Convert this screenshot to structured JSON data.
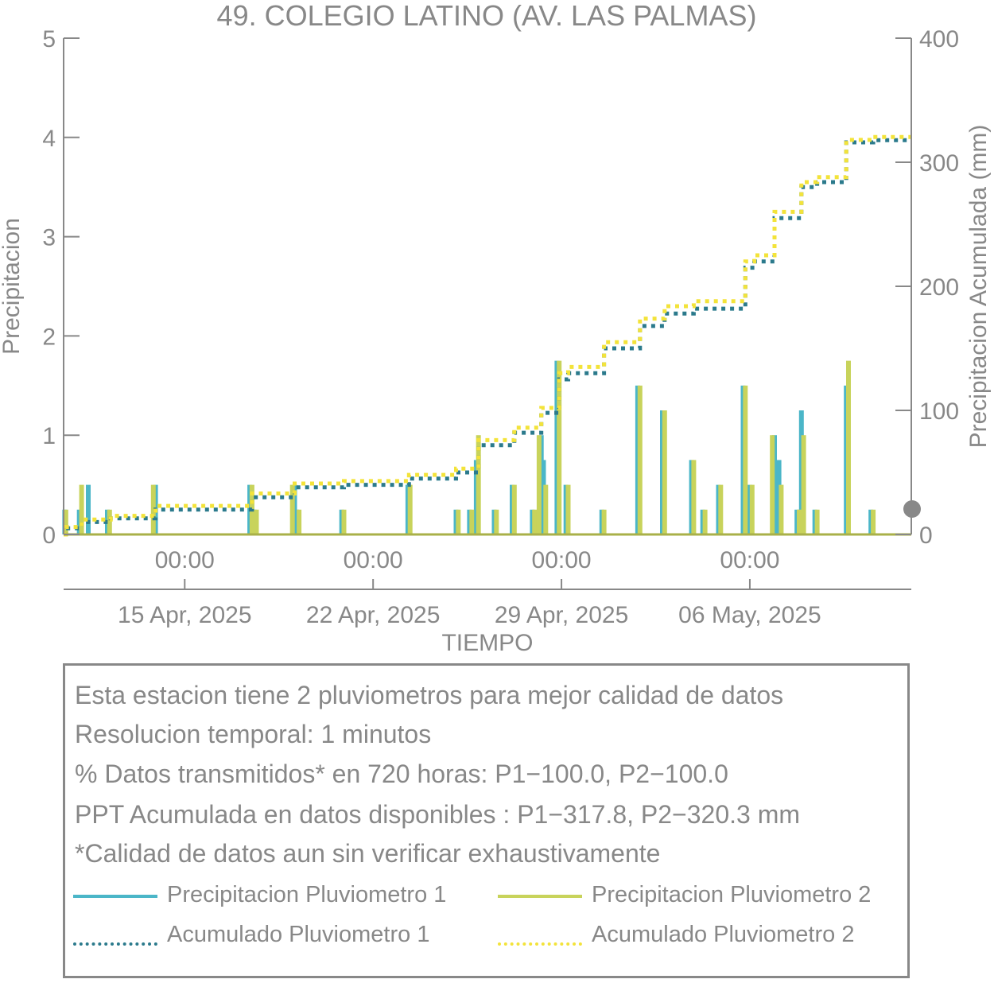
{
  "chart_data": {
    "type": "bar+line",
    "title": "49. COLEGIO LATINO (AV. LAS PALMAS)",
    "xlabel": "TIEMPO",
    "ylabel_left": "Precipitacion",
    "ylabel_right": "Precipitacion Acumulada (mm)",
    "ylim_left": [
      0,
      5
    ],
    "ylim_right": [
      0,
      400
    ],
    "yticks_left": [
      0,
      1,
      2,
      3,
      4,
      5
    ],
    "yticks_right": [
      0,
      100,
      200,
      300,
      400
    ],
    "x_range_days": [
      "2025-04-10T12:00",
      "2025-05-12T00:00"
    ],
    "xtick_labels": [
      "00:00",
      "00:00",
      "00:00",
      "00:00"
    ],
    "xtick_dates": [
      "15 Apr, 2025",
      "22 Apr, 2025",
      "29 Apr, 2025",
      "06 May, 2025"
    ],
    "xtick_positions": [
      "2025-04-15T00:00",
      "2025-04-22T00:00",
      "2025-04-29T00:00",
      "2025-05-06T00:00"
    ],
    "grid": false,
    "colors": {
      "p1": "#4bb6c8",
      "p2": "#c8d35b",
      "acc1": "#2b7a8c",
      "acc2": "#f3e33a",
      "axis": "#888888",
      "marker": "#888888"
    },
    "series": [
      {
        "name": "Precipitacion Pluviometro 1",
        "kind": "bar",
        "axis": "left",
        "points": [
          [
            "2025-04-10T13:00",
            0.25
          ],
          [
            "2025-04-11T02:00",
            0.25
          ],
          [
            "2025-04-11T10:00",
            0.5
          ],
          [
            "2025-04-12T03:00",
            0.25
          ],
          [
            "2025-04-13T22:00",
            0.5
          ],
          [
            "2025-04-17T10:00",
            0.5
          ],
          [
            "2025-04-17T14:00",
            0.25
          ],
          [
            "2025-04-19T02:00",
            0.5
          ],
          [
            "2025-04-19T04:00",
            0.25
          ],
          [
            "2025-04-20T20:00",
            0.25
          ],
          [
            "2025-04-23T07:00",
            0.5
          ],
          [
            "2025-04-25T02:00",
            0.25
          ],
          [
            "2025-04-25T14:00",
            0.25
          ],
          [
            "2025-04-25T20:00",
            0.75
          ],
          [
            "2025-04-26T12:00",
            0.25
          ],
          [
            "2025-04-27T04:00",
            0.5
          ],
          [
            "2025-04-27T22:00",
            0.25
          ],
          [
            "2025-04-28T06:00",
            1.0
          ],
          [
            "2025-04-28T08:00",
            0.75
          ],
          [
            "2025-04-28T20:00",
            1.75
          ],
          [
            "2025-04-29T04:00",
            0.5
          ],
          [
            "2025-04-30T12:00",
            0.25
          ],
          [
            "2025-05-01T20:00",
            1.5
          ],
          [
            "2025-05-02T18:00",
            1.25
          ],
          [
            "2025-05-03T20:00",
            0.75
          ],
          [
            "2025-05-04T06:00",
            0.25
          ],
          [
            "2025-05-04T20:00",
            0.5
          ],
          [
            "2025-05-05T18:00",
            1.5
          ],
          [
            "2025-05-06T00:00",
            0.5
          ],
          [
            "2025-05-06T22:00",
            1.0
          ],
          [
            "2025-05-07T02:00",
            0.75
          ],
          [
            "2025-05-07T18:00",
            0.25
          ],
          [
            "2025-05-07T22:00",
            1.25
          ],
          [
            "2025-05-08T10:00",
            0.25
          ],
          [
            "2025-05-09T14:00",
            1.5
          ],
          [
            "2025-05-10T12:00",
            0.25
          ]
        ]
      },
      {
        "name": "Precipitacion Pluviometro 2",
        "kind": "bar",
        "axis": "left",
        "points": [
          [
            "2025-04-10T14:00",
            0.25
          ],
          [
            "2025-04-11T04:00",
            0.5
          ],
          [
            "2025-04-12T05:00",
            0.25
          ],
          [
            "2025-04-13T20:00",
            0.5
          ],
          [
            "2025-04-17T12:00",
            0.5
          ],
          [
            "2025-04-17T16:00",
            0.25
          ],
          [
            "2025-04-19T00:00",
            0.5
          ],
          [
            "2025-04-19T06:00",
            0.25
          ],
          [
            "2025-04-20T22:00",
            0.25
          ],
          [
            "2025-04-23T09:00",
            0.5
          ],
          [
            "2025-04-25T04:00",
            0.25
          ],
          [
            "2025-04-25T16:00",
            0.25
          ],
          [
            "2025-04-25T22:00",
            1.0
          ],
          [
            "2025-04-26T14:00",
            0.25
          ],
          [
            "2025-04-27T06:00",
            0.5
          ],
          [
            "2025-04-28T00:00",
            0.25
          ],
          [
            "2025-04-28T04:00",
            1.0
          ],
          [
            "2025-04-28T10:00",
            0.5
          ],
          [
            "2025-04-28T22:00",
            1.75
          ],
          [
            "2025-04-29T06:00",
            0.5
          ],
          [
            "2025-04-30T14:00",
            0.25
          ],
          [
            "2025-05-01T22:00",
            1.5
          ],
          [
            "2025-05-02T20:00",
            1.25
          ],
          [
            "2025-05-03T22:00",
            0.75
          ],
          [
            "2025-05-04T08:00",
            0.25
          ],
          [
            "2025-05-04T22:00",
            0.5
          ],
          [
            "2025-05-05T20:00",
            1.5
          ],
          [
            "2025-05-06T02:00",
            0.5
          ],
          [
            "2025-05-06T20:00",
            1.0
          ],
          [
            "2025-05-07T04:00",
            0.5
          ],
          [
            "2025-05-07T20:00",
            0.25
          ],
          [
            "2025-05-08T00:00",
            1.0
          ],
          [
            "2025-05-08T12:00",
            0.25
          ],
          [
            "2025-05-09T16:00",
            1.75
          ],
          [
            "2025-05-10T14:00",
            0.25
          ]
        ]
      },
      {
        "name": "Acumulado Pluviometro 1",
        "kind": "line",
        "style": "dotted",
        "axis": "right",
        "points": [
          [
            "2025-04-10T12:00",
            0
          ],
          [
            "2025-04-10T14:00",
            5
          ],
          [
            "2025-04-11T04:00",
            10
          ],
          [
            "2025-04-12T06:00",
            13
          ],
          [
            "2025-04-13T22:00",
            20
          ],
          [
            "2025-04-17T12:00",
            30
          ],
          [
            "2025-04-19T02:00",
            38
          ],
          [
            "2025-04-20T22:00",
            40
          ],
          [
            "2025-04-23T08:00",
            45
          ],
          [
            "2025-04-25T02:00",
            50
          ],
          [
            "2025-04-25T22:00",
            72
          ],
          [
            "2025-04-27T06:00",
            82
          ],
          [
            "2025-04-28T06:00",
            98
          ],
          [
            "2025-04-28T22:00",
            125
          ],
          [
            "2025-04-29T06:00",
            130
          ],
          [
            "2025-04-30T14:00",
            150
          ],
          [
            "2025-05-01T22:00",
            168
          ],
          [
            "2025-05-02T20:00",
            178
          ],
          [
            "2025-05-03T22:00",
            182
          ],
          [
            "2025-05-05T20:00",
            215
          ],
          [
            "2025-05-06T04:00",
            220
          ],
          [
            "2025-05-06T22:00",
            255
          ],
          [
            "2025-05-07T22:00",
            280
          ],
          [
            "2025-05-08T12:00",
            284
          ],
          [
            "2025-05-09T14:00",
            316
          ],
          [
            "2025-05-10T14:00",
            317.8
          ],
          [
            "2025-05-12T00:00",
            317.8
          ]
        ]
      },
      {
        "name": "Acumulado Pluviometro 2",
        "kind": "line",
        "style": "dotted",
        "axis": "right",
        "points": [
          [
            "2025-04-10T12:00",
            0
          ],
          [
            "2025-04-10T14:00",
            6
          ],
          [
            "2025-04-11T04:00",
            12
          ],
          [
            "2025-04-12T06:00",
            15
          ],
          [
            "2025-04-13T22:00",
            23
          ],
          [
            "2025-04-17T12:00",
            33
          ],
          [
            "2025-04-19T02:00",
            41
          ],
          [
            "2025-04-20T22:00",
            43
          ],
          [
            "2025-04-23T08:00",
            48
          ],
          [
            "2025-04-25T02:00",
            53
          ],
          [
            "2025-04-25T22:00",
            76
          ],
          [
            "2025-04-27T06:00",
            86
          ],
          [
            "2025-04-28T06:00",
            102
          ],
          [
            "2025-04-28T22:00",
            130
          ],
          [
            "2025-04-29T06:00",
            135
          ],
          [
            "2025-04-30T14:00",
            155
          ],
          [
            "2025-05-01T22:00",
            174
          ],
          [
            "2025-05-02T20:00",
            184
          ],
          [
            "2025-05-03T22:00",
            188
          ],
          [
            "2025-05-05T20:00",
            220
          ],
          [
            "2025-05-06T04:00",
            225
          ],
          [
            "2025-05-06T22:00",
            260
          ],
          [
            "2025-05-07T22:00",
            284
          ],
          [
            "2025-05-08T12:00",
            288
          ],
          [
            "2025-05-09T14:00",
            318
          ],
          [
            "2025-05-10T14:00",
            320.3
          ],
          [
            "2025-05-12T00:00",
            320.3
          ]
        ]
      }
    ]
  },
  "info": {
    "line1": "Esta estacion tiene 2 pluviometros para mejor calidad de datos",
    "line2": "Resolucion temporal: 1 minutos",
    "line3": "% Datos transmitidos* en 720 horas: P1−100.0, P2−100.0",
    "line4": "PPT Acumulada en datos disponibles : P1−317.8, P2−320.3 mm",
    "line5": "*Calidad de datos aun sin verificar exhaustivamente"
  },
  "legend": [
    {
      "label": "Precipitacion Pluviometro 1",
      "style": "solid",
      "color": "#4bb6c8"
    },
    {
      "label": "Precipitacion Pluviometro 2",
      "style": "solid",
      "color": "#c8d35b"
    },
    {
      "label": "Acumulado Pluviometro 1",
      "style": "dotted",
      "color": "#2b7a8c"
    },
    {
      "label": "Acumulado Pluviometro 2",
      "style": "dotted",
      "color": "#f3e33a"
    }
  ]
}
